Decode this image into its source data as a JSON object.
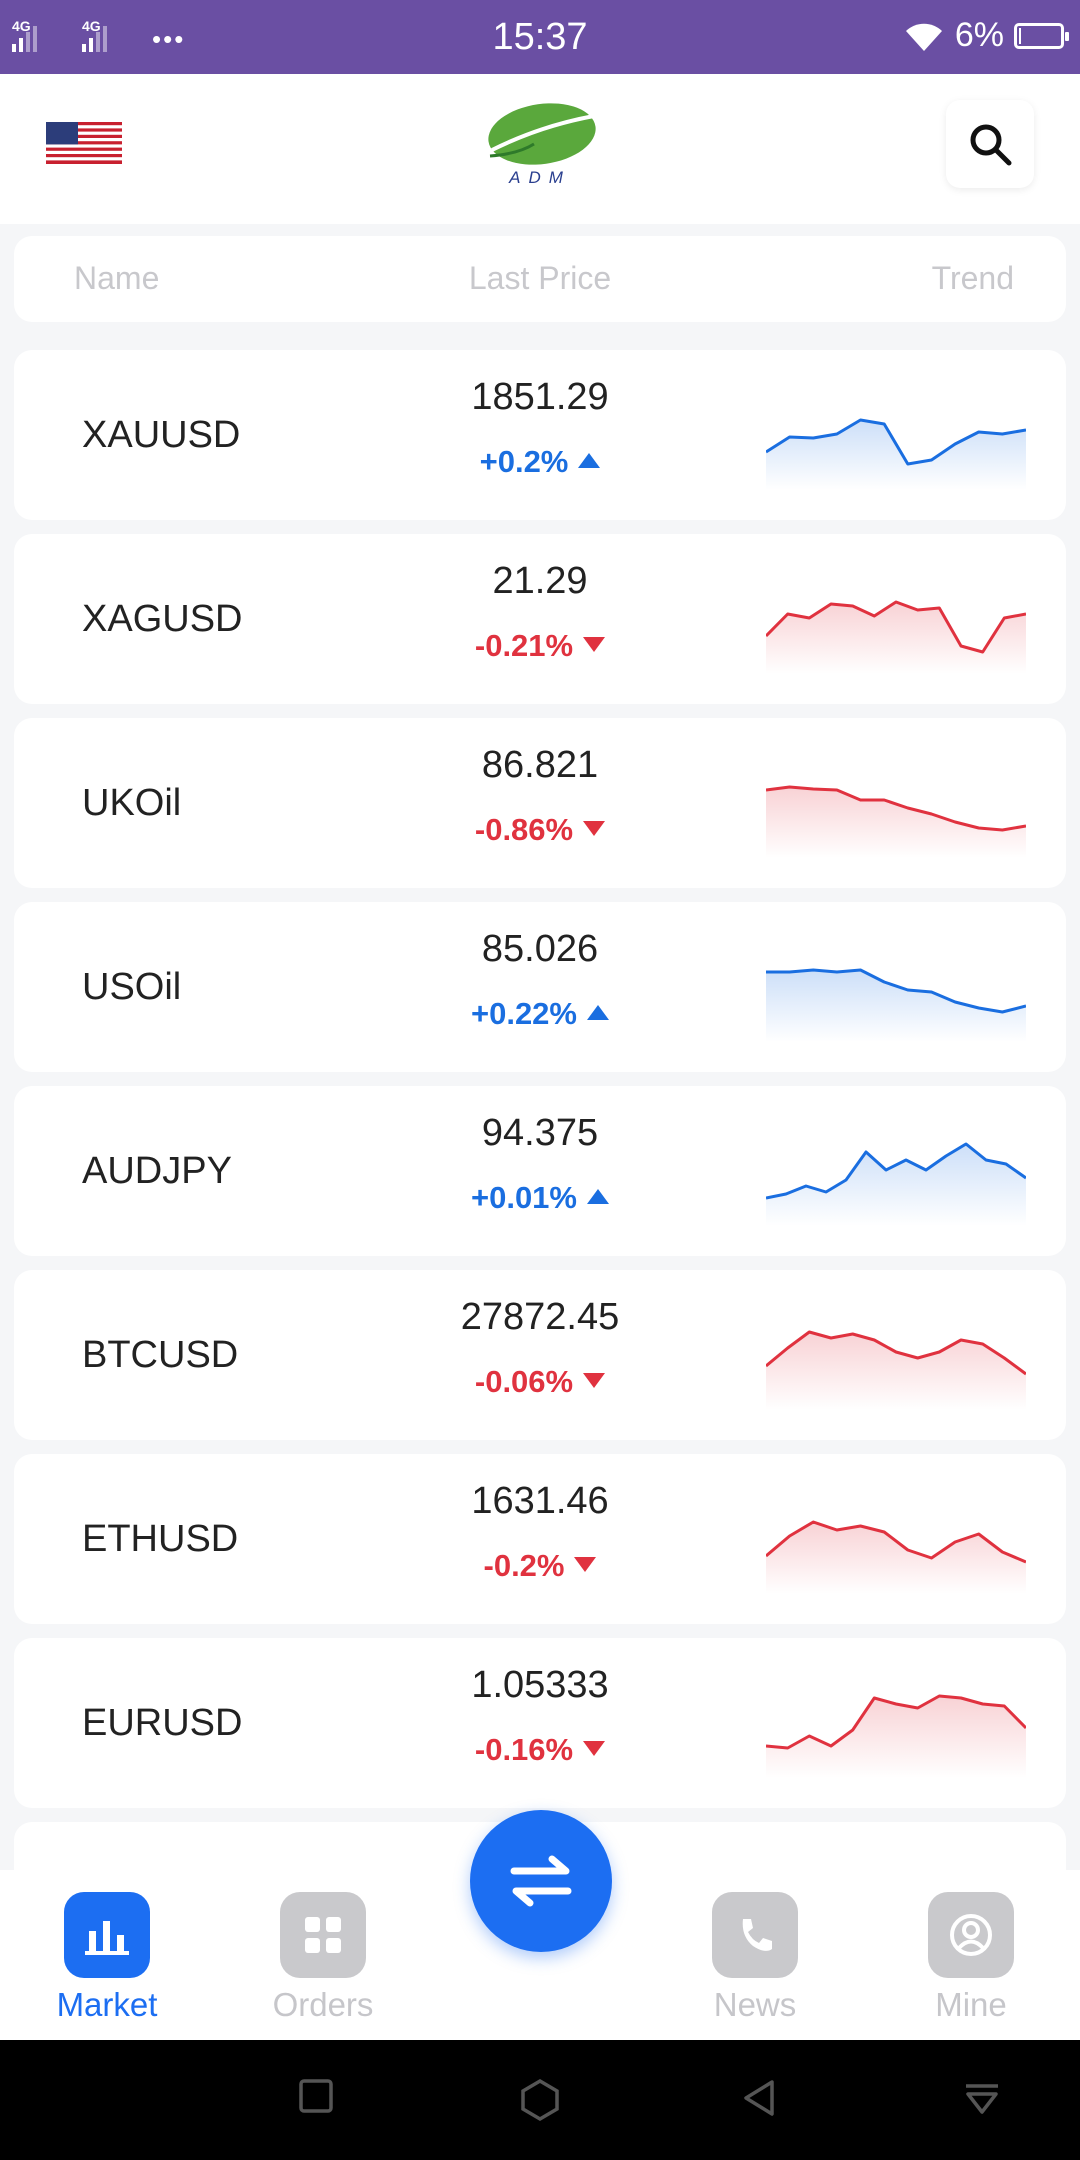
{
  "status_bar": {
    "network_1": "4G",
    "network_2": "4G",
    "more": "•••",
    "time": "15:37",
    "battery": "6%",
    "battery_level": 0.06
  },
  "header": {
    "flag_icon": "us-flag-icon",
    "logo_text": "ADM",
    "search_icon": "search-icon"
  },
  "table_header": {
    "name": "Name",
    "last_price": "Last Price",
    "trend": "Trend"
  },
  "markets": [
    {
      "symbol": "XAUUSD",
      "price": "1851.29",
      "change": "+0.2%",
      "direction": "up",
      "trend": [
        30,
        45,
        44,
        48,
        62,
        58,
        18,
        22,
        38,
        50,
        48,
        52
      ]
    },
    {
      "symbol": "XAGUSD",
      "price": "21.29",
      "change": "-0.21%",
      "direction": "down",
      "trend": [
        30,
        52,
        48,
        62,
        60,
        50,
        64,
        56,
        58,
        20,
        14,
        48,
        52
      ]
    },
    {
      "symbol": "UKOil",
      "price": "86.821",
      "change": "-0.86%",
      "direction": "down",
      "trend": [
        60,
        63,
        61,
        60,
        50,
        50,
        42,
        36,
        28,
        22,
        20,
        24
      ]
    },
    {
      "symbol": "USOil",
      "price": "85.026",
      "change": "+0.22%",
      "direction": "up",
      "trend": [
        62,
        62,
        64,
        62,
        64,
        52,
        44,
        42,
        32,
        26,
        22,
        28
      ]
    },
    {
      "symbol": "AUDJPY",
      "price": "94.375",
      "change": "+0.01%",
      "direction": "up",
      "trend": [
        20,
        24,
        32,
        26,
        38,
        66,
        48,
        58,
        48,
        62,
        74,
        58,
        54,
        40
      ]
    },
    {
      "symbol": "BTCUSD",
      "price": "27872.45",
      "change": "-0.06%",
      "direction": "down",
      "trend": [
        36,
        54,
        70,
        64,
        68,
        62,
        50,
        44,
        50,
        62,
        58,
        44,
        28
      ]
    },
    {
      "symbol": "ETHUSD",
      "price": "1631.46",
      "change": "-0.2%",
      "direction": "down",
      "trend": [
        30,
        50,
        64,
        56,
        60,
        54,
        36,
        28,
        44,
        52,
        34,
        24
      ]
    },
    {
      "symbol": "EURUSD",
      "price": "1.05333",
      "change": "-0.16%",
      "direction": "down",
      "trend": [
        24,
        22,
        34,
        24,
        40,
        72,
        66,
        62,
        74,
        72,
        66,
        64,
        42
      ]
    }
  ],
  "bottom_nav": [
    {
      "label": "Market",
      "icon": "bar-chart-icon",
      "active": true
    },
    {
      "label": "Orders",
      "icon": "grid-icon",
      "active": false
    },
    {
      "label": "News",
      "icon": "phone-icon",
      "active": false
    },
    {
      "label": "Mine",
      "icon": "user-icon",
      "active": false
    }
  ],
  "fab_icon": "swap-arrows-icon",
  "colors": {
    "status_bar": "#6a4fa3",
    "accent": "#1c6ef2",
    "up": "#1a6ee0",
    "down": "#e0323f"
  }
}
